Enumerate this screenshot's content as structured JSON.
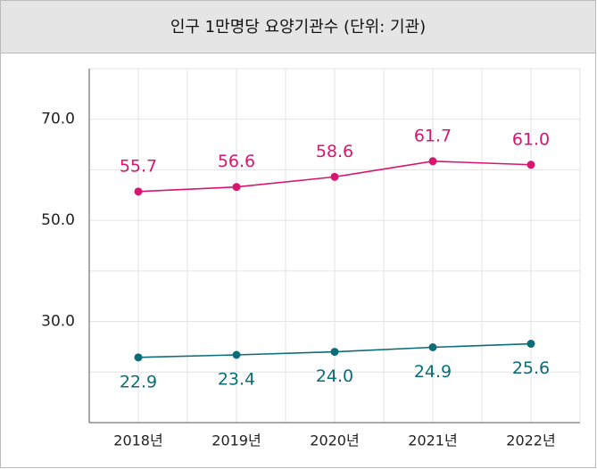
{
  "chart_data": {
    "type": "line",
    "title": "인구 1만명당 요양기관수 (단위: 기관)",
    "categories": [
      "2018년",
      "2019년",
      "2020년",
      "2021년",
      "2022년"
    ],
    "series": [
      {
        "color": "#d8156f",
        "values": [
          55.7,
          56.6,
          58.6,
          61.7,
          61.0
        ],
        "value_labels": [
          "55.7",
          "56.6",
          "58.6",
          "61.7",
          "61.0"
        ],
        "label_position": "above"
      },
      {
        "color": "#0b6d78",
        "values": [
          22.9,
          23.4,
          24.0,
          24.9,
          25.6
        ],
        "value_labels": [
          "22.9",
          "23.4",
          "24.0",
          "24.9",
          "25.6"
        ],
        "label_position": "below"
      }
    ],
    "ylim": [
      10,
      80
    ],
    "yticks": [
      {
        "value": 30,
        "label": "30.0"
      },
      {
        "value": 50,
        "label": "50.0"
      },
      {
        "value": 70,
        "label": "70.0"
      }
    ],
    "minor_yticks": [
      20,
      40,
      60,
      80
    ],
    "grid": true
  }
}
